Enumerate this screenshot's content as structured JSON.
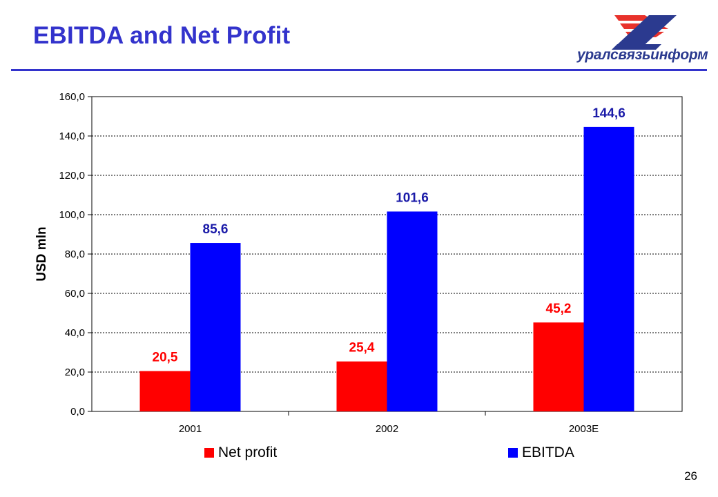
{
  "slide": {
    "title": "EBITDA and Net Profit",
    "logo_text": "уралсвязьинформ",
    "page_number": "26"
  },
  "colors": {
    "accent": "#3333cc",
    "net_profit": "#ff0000",
    "ebitda": "#0000ff",
    "net_profit_label": "#ff0000",
    "ebitda_label": "#1a1aa8",
    "logo_red": "#e8322b",
    "logo_navy": "#2b3a8f"
  },
  "chart_data": {
    "type": "bar",
    "title": "",
    "xlabel": "",
    "ylabel": "USD mln",
    "categories": [
      "2001",
      "2002",
      "2003E"
    ],
    "series": [
      {
        "name": "Net profit",
        "values": [
          20.5,
          25.4,
          45.2
        ],
        "labels": [
          "20,5",
          "25,4",
          "45,2"
        ]
      },
      {
        "name": "EBITDA",
        "values": [
          85.6,
          101.6,
          144.6
        ],
        "labels": [
          "85,6",
          "101,6",
          "144,6"
        ]
      }
    ],
    "ylim": [
      0,
      160
    ],
    "yticks": [
      0,
      20,
      40,
      60,
      80,
      100,
      120,
      140,
      160
    ],
    "ytick_labels": [
      "0,0",
      "20,0",
      "40,0",
      "60,0",
      "80,0",
      "100,0",
      "120,0",
      "140,0",
      "160,0"
    ],
    "grid": true,
    "legend_position": "bottom"
  }
}
